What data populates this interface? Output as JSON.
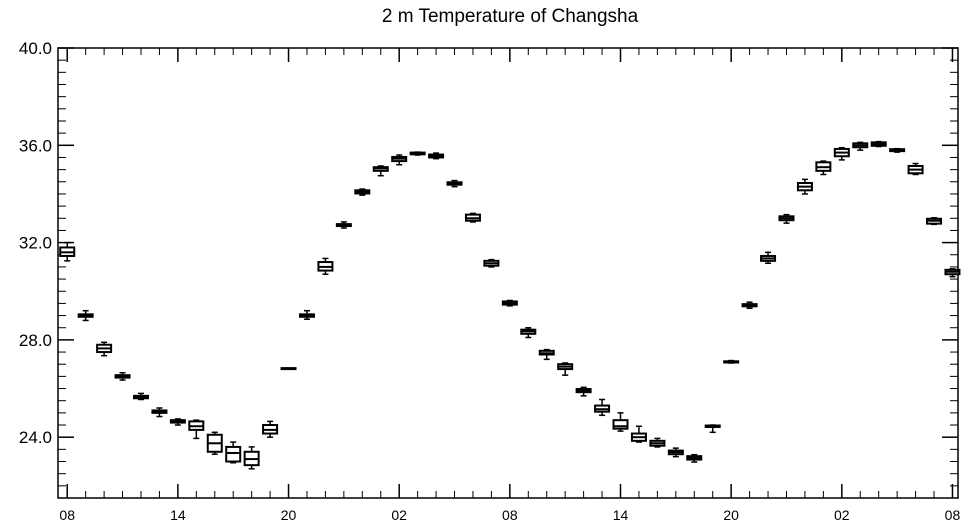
{
  "chart_data": {
    "type": "boxplot",
    "title": "2 m Temperature of Changsha",
    "xlabel": "",
    "ylabel": "",
    "ylim": [
      21.5,
      40.0
    ],
    "yticks": [
      "24.0",
      "28.0",
      "32.0",
      "36.0",
      "40.0"
    ],
    "ytick_values": [
      24.0,
      28.0,
      32.0,
      36.0,
      40.0
    ],
    "y_minor_step": 0.5,
    "xlim": [
      -0.5,
      48.3
    ],
    "xticks": [
      {
        "x": 0,
        "label": "08"
      },
      {
        "x": 6,
        "label": "14"
      },
      {
        "x": 12,
        "label": "20"
      },
      {
        "x": 18,
        "label": "02"
      },
      {
        "x": 24,
        "label": "08"
      },
      {
        "x": 30,
        "label": "14"
      },
      {
        "x": 36,
        "label": "20"
      },
      {
        "x": 42,
        "label": "02"
      },
      {
        "x": 48,
        "label": "08"
      }
    ],
    "grid": false,
    "boxes": [
      {
        "x": 0,
        "min": 31.25,
        "q1": 31.45,
        "median": 31.6,
        "q3": 31.8,
        "max": 32.0
      },
      {
        "x": 1,
        "min": 28.8,
        "q1": 28.95,
        "median": 29.0,
        "q3": 29.05,
        "max": 29.2
      },
      {
        "x": 2,
        "min": 27.35,
        "q1": 27.5,
        "median": 27.65,
        "q3": 27.8,
        "max": 27.9
      },
      {
        "x": 3,
        "min": 26.35,
        "q1": 26.45,
        "median": 26.5,
        "q3": 26.55,
        "max": 26.65
      },
      {
        "x": 4,
        "min": 25.55,
        "q1": 25.6,
        "median": 25.65,
        "q3": 25.7,
        "max": 25.8
      },
      {
        "x": 5,
        "min": 24.85,
        "q1": 25.0,
        "median": 25.05,
        "q3": 25.1,
        "max": 25.2
      },
      {
        "x": 6,
        "min": 24.5,
        "q1": 24.6,
        "median": 24.65,
        "q3": 24.7,
        "max": 24.75
      },
      {
        "x": 7,
        "min": 23.95,
        "q1": 24.3,
        "median": 24.45,
        "q3": 24.65,
        "max": 24.7
      },
      {
        "x": 8,
        "min": 23.3,
        "q1": 23.4,
        "median": 23.75,
        "q3": 24.1,
        "max": 24.2
      },
      {
        "x": 9,
        "min": 22.95,
        "q1": 23.0,
        "median": 23.35,
        "q3": 23.6,
        "max": 23.8
      },
      {
        "x": 10,
        "min": 22.7,
        "q1": 22.85,
        "median": 23.1,
        "q3": 23.4,
        "max": 23.6
      },
      {
        "x": 11,
        "min": 24.0,
        "q1": 24.15,
        "median": 24.3,
        "q3": 24.5,
        "max": 24.65
      },
      {
        "x": 12,
        "min": 26.8,
        "q1": 26.8,
        "median": 26.82,
        "q3": 26.84,
        "max": 26.84
      },
      {
        "x": 13,
        "min": 28.85,
        "q1": 28.95,
        "median": 29.0,
        "q3": 29.05,
        "max": 29.2
      },
      {
        "x": 14,
        "min": 30.7,
        "q1": 30.85,
        "median": 31.0,
        "q3": 31.2,
        "max": 31.35
      },
      {
        "x": 15,
        "min": 32.6,
        "q1": 32.68,
        "median": 32.72,
        "q3": 32.76,
        "max": 32.85
      },
      {
        "x": 16,
        "min": 33.95,
        "q1": 34.02,
        "median": 34.08,
        "q3": 34.15,
        "max": 34.2
      },
      {
        "x": 17,
        "min": 34.75,
        "q1": 34.95,
        "median": 35.05,
        "q3": 35.1,
        "max": 35.15
      },
      {
        "x": 18,
        "min": 35.2,
        "q1": 35.35,
        "median": 35.45,
        "q3": 35.52,
        "max": 35.6
      },
      {
        "x": 19,
        "min": 35.6,
        "q1": 35.63,
        "median": 35.67,
        "q3": 35.7,
        "max": 35.72
      },
      {
        "x": 20,
        "min": 35.45,
        "q1": 35.5,
        "median": 35.55,
        "q3": 35.62,
        "max": 35.68
      },
      {
        "x": 21,
        "min": 34.3,
        "q1": 34.38,
        "median": 34.42,
        "q3": 34.48,
        "max": 34.55
      },
      {
        "x": 22,
        "min": 32.85,
        "q1": 32.9,
        "median": 33.0,
        "q3": 33.15,
        "max": 33.2
      },
      {
        "x": 23,
        "min": 31.0,
        "q1": 31.05,
        "median": 31.15,
        "q3": 31.25,
        "max": 31.3
      },
      {
        "x": 24,
        "min": 29.4,
        "q1": 29.45,
        "median": 29.5,
        "q3": 29.58,
        "max": 29.62
      },
      {
        "x": 25,
        "min": 28.1,
        "q1": 28.25,
        "median": 28.35,
        "q3": 28.42,
        "max": 28.5
      },
      {
        "x": 26,
        "min": 27.2,
        "q1": 27.4,
        "median": 27.45,
        "q3": 27.55,
        "max": 27.6
      },
      {
        "x": 27,
        "min": 26.55,
        "q1": 26.8,
        "median": 26.9,
        "q3": 27.0,
        "max": 27.05
      },
      {
        "x": 28,
        "min": 25.7,
        "q1": 25.85,
        "median": 25.9,
        "q3": 25.98,
        "max": 26.05
      },
      {
        "x": 29,
        "min": 24.9,
        "q1": 25.05,
        "median": 25.15,
        "q3": 25.3,
        "max": 25.55
      },
      {
        "x": 30,
        "min": 24.25,
        "q1": 24.35,
        "median": 24.45,
        "q3": 24.7,
        "max": 25.0
      },
      {
        "x": 31,
        "min": 23.8,
        "q1": 23.85,
        "median": 24.0,
        "q3": 24.15,
        "max": 24.45
      },
      {
        "x": 32,
        "min": 23.6,
        "q1": 23.65,
        "median": 23.75,
        "q3": 23.85,
        "max": 23.95
      },
      {
        "x": 33,
        "min": 23.2,
        "q1": 23.3,
        "median": 23.38,
        "q3": 23.45,
        "max": 23.55
      },
      {
        "x": 34,
        "min": 22.98,
        "q1": 23.08,
        "median": 23.15,
        "q3": 23.22,
        "max": 23.28
      },
      {
        "x": 35,
        "min": 24.2,
        "q1": 24.42,
        "median": 24.45,
        "q3": 24.48,
        "max": 24.5
      },
      {
        "x": 36,
        "min": 27.05,
        "q1": 27.07,
        "median": 27.1,
        "q3": 27.12,
        "max": 27.15
      },
      {
        "x": 37,
        "min": 29.3,
        "q1": 29.38,
        "median": 29.42,
        "q3": 29.47,
        "max": 29.55
      },
      {
        "x": 38,
        "min": 31.15,
        "q1": 31.25,
        "median": 31.35,
        "q3": 31.45,
        "max": 31.6
      },
      {
        "x": 39,
        "min": 32.8,
        "q1": 32.92,
        "median": 33.0,
        "q3": 33.08,
        "max": 33.15
      },
      {
        "x": 40,
        "min": 34.0,
        "q1": 34.15,
        "median": 34.3,
        "q3": 34.45,
        "max": 34.6
      },
      {
        "x": 41,
        "min": 34.8,
        "q1": 34.95,
        "median": 35.1,
        "q3": 35.3,
        "max": 35.35
      },
      {
        "x": 42,
        "min": 35.4,
        "q1": 35.55,
        "median": 35.7,
        "q3": 35.85,
        "max": 35.9
      },
      {
        "x": 43,
        "min": 35.8,
        "q1": 35.92,
        "median": 36.0,
        "q3": 36.08,
        "max": 36.12
      },
      {
        "x": 44,
        "min": 35.95,
        "q1": 35.98,
        "median": 36.05,
        "q3": 36.12,
        "max": 36.15
      },
      {
        "x": 45,
        "min": 35.72,
        "q1": 35.76,
        "median": 35.8,
        "q3": 35.84,
        "max": 35.86
      },
      {
        "x": 46,
        "min": 34.8,
        "q1": 34.85,
        "median": 35.0,
        "q3": 35.15,
        "max": 35.25
      },
      {
        "x": 47,
        "min": 32.75,
        "q1": 32.78,
        "median": 32.9,
        "q3": 32.98,
        "max": 33.02
      },
      {
        "x": 48,
        "min": 30.6,
        "q1": 30.7,
        "median": 30.8,
        "q3": 30.88,
        "max": 30.92
      }
    ]
  }
}
